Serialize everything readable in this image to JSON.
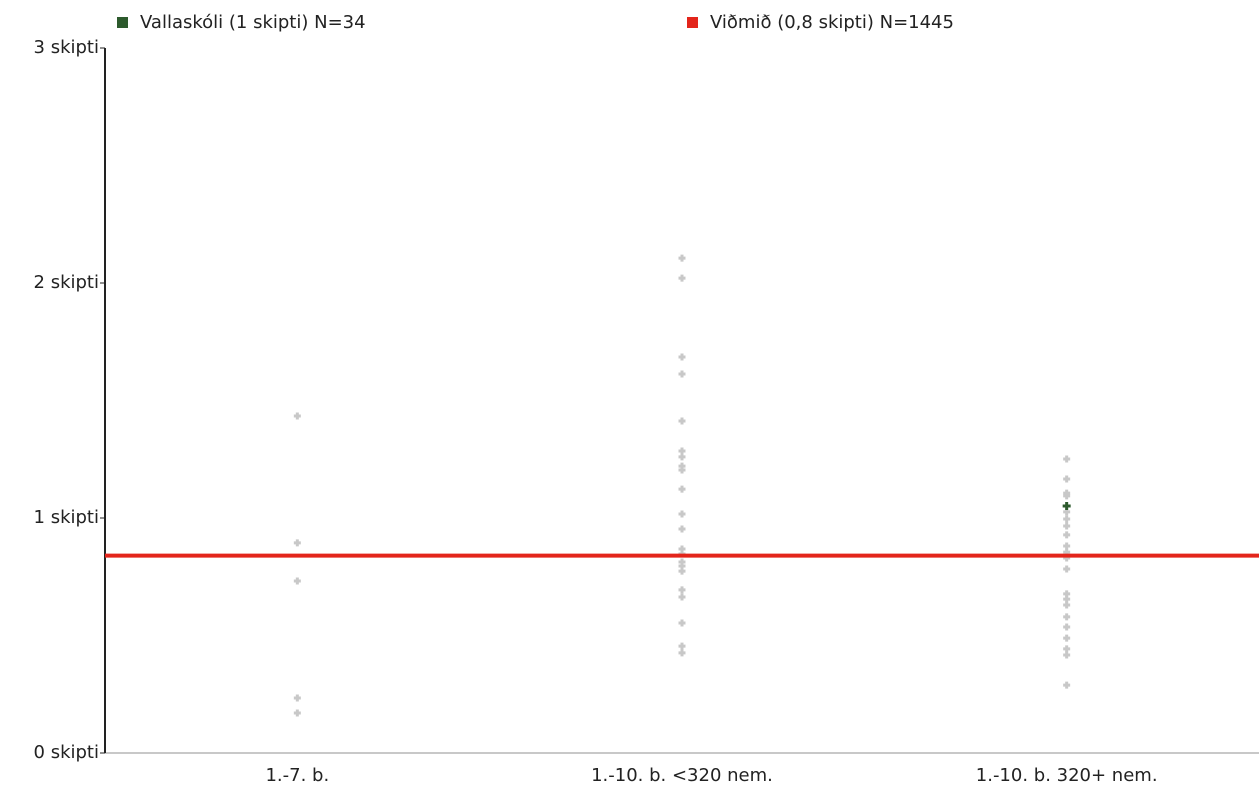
{
  "chart_data": {
    "type": "strip",
    "categories": [
      "1.-7. b.",
      "1.-10. b. <320 nem.",
      "1.-10. b. 320+ nem."
    ],
    "ylim": [
      0,
      3
    ],
    "yticks": [
      {
        "value": 0,
        "label": "0 skipti"
      },
      {
        "value": 1,
        "label": "1 skipti"
      },
      {
        "value": 2,
        "label": "2 skipti"
      },
      {
        "value": 3,
        "label": "3 skipti"
      }
    ],
    "background_color": "#c8c8c8",
    "background_points": [
      [
        1.434,
        0.894,
        0.732,
        0.234,
        0.17
      ],
      [
        2.106,
        2.021,
        1.685,
        1.613,
        1.413,
        1.285,
        1.26,
        1.221,
        1.204,
        1.123,
        1.017,
        0.953,
        0.868,
        0.847,
        0.813,
        0.796,
        0.774,
        0.694,
        0.664,
        0.553,
        0.455,
        0.426
      ],
      [
        1.251,
        1.166,
        1.106,
        1.094,
        1.026,
        0.996,
        0.966,
        0.928,
        0.881,
        0.855,
        0.83,
        0.783,
        0.677,
        0.655,
        0.63,
        0.579,
        0.536,
        0.489,
        0.443,
        0.417,
        0.289
      ]
    ],
    "series": [
      {
        "name": "Vallaskóli (1 skipti) N=34",
        "color": "#2d5a2d",
        "values": [
          null,
          null,
          1.051
        ]
      },
      {
        "name": "Viðmið (0,8 skipti) N=1445",
        "color": "#e3251b",
        "value": 0.84
      }
    ]
  }
}
